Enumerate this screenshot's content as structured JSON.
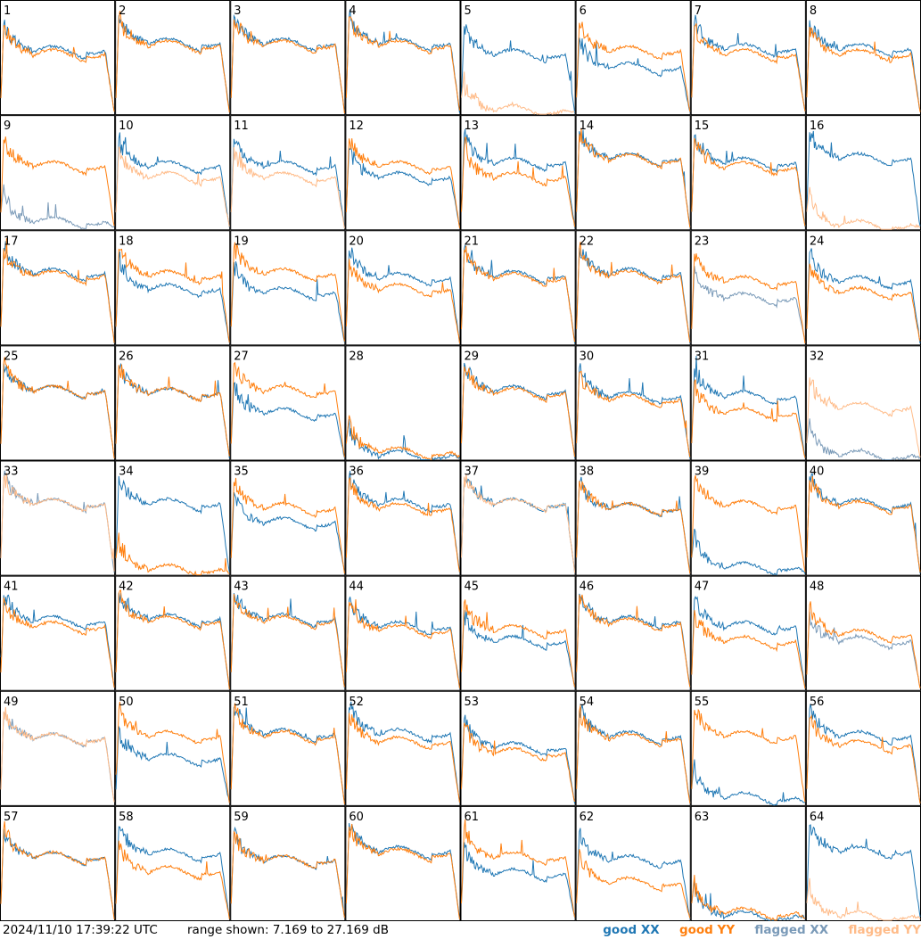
{
  "footer": {
    "timestamp": "2024/11/10 17:39:22 UTC",
    "range_text": "range shown: 7.169 to 27.169 dB"
  },
  "legend": [
    {
      "label": "good XX",
      "color": "#1f77b4"
    },
    {
      "label": "good YY",
      "color": "#ff7f0e"
    },
    {
      "label": "flagged XX",
      "color": "#7a9ab8"
    },
    {
      "label": "flagged YY",
      "color": "#ffbb88"
    }
  ],
  "chart_data": {
    "type": "line",
    "title": "",
    "xlabel": "",
    "ylabel": "",
    "ylim": [
      7.169,
      27.169
    ],
    "grid": false,
    "legend_placement": "bottom-right",
    "series_names": [
      "good XX",
      "good YY",
      "flagged XX",
      "flagged YY"
    ],
    "panels": [
      {
        "label": "1",
        "xx": "good",
        "yy": "good",
        "xx_level": 0.55,
        "yy_level": 0.52
      },
      {
        "label": "2",
        "xx": "good",
        "yy": "good",
        "xx_level": 0.62,
        "yy_level": 0.6
      },
      {
        "label": "3",
        "xx": "good",
        "yy": "good",
        "xx_level": 0.62,
        "yy_level": 0.6
      },
      {
        "label": "4",
        "xx": "good",
        "yy": "good",
        "xx_level": 0.62,
        "yy_level": 0.6
      },
      {
        "label": "5",
        "xx": "good",
        "yy": "flagged",
        "xx_level": 0.52,
        "yy_level": 0.02
      },
      {
        "label": "6",
        "xx": "good",
        "yy": "good",
        "xx_level": 0.4,
        "yy_level": 0.55
      },
      {
        "label": "7",
        "xx": "good",
        "yy": "good",
        "xx_level": 0.57,
        "yy_level": 0.52
      },
      {
        "label": "8",
        "xx": "good",
        "yy": "good",
        "xx_level": 0.57,
        "yy_level": 0.52
      },
      {
        "label": "9",
        "xx": "flagged",
        "yy": "good",
        "xx_level": 0.05,
        "yy_level": 0.55
      },
      {
        "label": "10",
        "xx": "good",
        "yy": "flagged",
        "xx_level": 0.55,
        "yy_level": 0.45
      },
      {
        "label": "11",
        "xx": "good",
        "yy": "flagged",
        "xx_level": 0.55,
        "yy_level": 0.45
      },
      {
        "label": "12",
        "xx": "good",
        "yy": "good",
        "xx_level": 0.45,
        "yy_level": 0.55
      },
      {
        "label": "13",
        "xx": "good",
        "yy": "good",
        "xx_level": 0.58,
        "yy_level": 0.45
      },
      {
        "label": "14",
        "xx": "good",
        "yy": "good",
        "xx_level": 0.62,
        "yy_level": 0.61
      },
      {
        "label": "15",
        "xx": "good",
        "yy": "good",
        "xx_level": 0.58,
        "yy_level": 0.54
      },
      {
        "label": "16",
        "xx": "good",
        "yy": "flagged",
        "xx_level": 0.62,
        "yy_level": 0.02
      },
      {
        "label": "17",
        "xx": "good",
        "yy": "good",
        "xx_level": 0.62,
        "yy_level": 0.6
      },
      {
        "label": "18",
        "xx": "good",
        "yy": "good",
        "xx_level": 0.48,
        "yy_level": 0.6
      },
      {
        "label": "19",
        "xx": "good",
        "yy": "good",
        "xx_level": 0.45,
        "yy_level": 0.62
      },
      {
        "label": "20",
        "xx": "good",
        "yy": "good",
        "xx_level": 0.58,
        "yy_level": 0.48
      },
      {
        "label": "21",
        "xx": "good",
        "yy": "good",
        "xx_level": 0.6,
        "yy_level": 0.58
      },
      {
        "label": "22",
        "xx": "good",
        "yy": "good",
        "xx_level": 0.62,
        "yy_level": 0.6
      },
      {
        "label": "23",
        "xx": "flagged",
        "yy": "good",
        "xx_level": 0.4,
        "yy_level": 0.55
      },
      {
        "label": "24",
        "xx": "good",
        "yy": "good",
        "xx_level": 0.55,
        "yy_level": 0.45
      },
      {
        "label": "25",
        "xx": "good",
        "yy": "good",
        "xx_level": 0.6,
        "yy_level": 0.6
      },
      {
        "label": "26",
        "xx": "good",
        "yy": "good",
        "xx_level": 0.58,
        "yy_level": 0.58
      },
      {
        "label": "27",
        "xx": "good",
        "yy": "good",
        "xx_level": 0.4,
        "yy_level": 0.6
      },
      {
        "label": "28",
        "xx": "good",
        "yy": "good",
        "xx_level": 0.02,
        "yy_level": 0.05
      },
      {
        "label": "29",
        "xx": "good",
        "yy": "good",
        "xx_level": 0.6,
        "yy_level": 0.58
      },
      {
        "label": "30",
        "xx": "good",
        "yy": "good",
        "xx_level": 0.55,
        "yy_level": 0.52
      },
      {
        "label": "31",
        "xx": "good",
        "yy": "good",
        "xx_level": 0.55,
        "yy_level": 0.4
      },
      {
        "label": "32",
        "xx": "flagged",
        "yy": "flagged",
        "xx_level": 0.02,
        "yy_level": 0.45
      },
      {
        "label": "33",
        "xx": "flagged",
        "yy": "flagged",
        "xx_level": 0.62,
        "yy_level": 0.62
      },
      {
        "label": "34",
        "xx": "good",
        "yy": "good",
        "xx_level": 0.62,
        "yy_level": 0.03
      },
      {
        "label": "35",
        "xx": "good",
        "yy": "good",
        "xx_level": 0.45,
        "yy_level": 0.58
      },
      {
        "label": "36",
        "xx": "good",
        "yy": "good",
        "xx_level": 0.62,
        "yy_level": 0.58
      },
      {
        "label": "37",
        "xx": "good",
        "yy": "flagged",
        "xx_level": 0.62,
        "yy_level": 0.62
      },
      {
        "label": "38",
        "xx": "good",
        "yy": "good",
        "xx_level": 0.58,
        "yy_level": 0.58
      },
      {
        "label": "39",
        "xx": "good",
        "yy": "good",
        "xx_level": 0.05,
        "yy_level": 0.6
      },
      {
        "label": "40",
        "xx": "good",
        "yy": "good",
        "xx_level": 0.62,
        "yy_level": 0.6
      },
      {
        "label": "41",
        "xx": "good",
        "yy": "good",
        "xx_level": 0.6,
        "yy_level": 0.55
      },
      {
        "label": "42",
        "xx": "good",
        "yy": "good",
        "xx_level": 0.62,
        "yy_level": 0.6
      },
      {
        "label": "43",
        "xx": "good",
        "yy": "good",
        "xx_level": 0.62,
        "yy_level": 0.6
      },
      {
        "label": "44",
        "xx": "good",
        "yy": "good",
        "xx_level": 0.55,
        "yy_level": 0.52
      },
      {
        "label": "45",
        "xx": "good",
        "yy": "good",
        "xx_level": 0.42,
        "yy_level": 0.52
      },
      {
        "label": "46",
        "xx": "good",
        "yy": "good",
        "xx_level": 0.6,
        "yy_level": 0.58
      },
      {
        "label": "47",
        "xx": "good",
        "yy": "good",
        "xx_level": 0.55,
        "yy_level": 0.42
      },
      {
        "label": "48",
        "xx": "flagged",
        "yy": "good",
        "xx_level": 0.42,
        "yy_level": 0.48
      },
      {
        "label": "49",
        "xx": "flagged",
        "yy": "flagged",
        "xx_level": 0.58,
        "yy_level": 0.58
      },
      {
        "label": "50",
        "xx": "good",
        "yy": "good",
        "xx_level": 0.4,
        "yy_level": 0.6
      },
      {
        "label": "51",
        "xx": "good",
        "yy": "good",
        "xx_level": 0.62,
        "yy_level": 0.6
      },
      {
        "label": "52",
        "xx": "good",
        "yy": "good",
        "xx_level": 0.62,
        "yy_level": 0.55
      },
      {
        "label": "53",
        "xx": "good",
        "yy": "good",
        "xx_level": 0.5,
        "yy_level": 0.45
      },
      {
        "label": "54",
        "xx": "good",
        "yy": "good",
        "xx_level": 0.6,
        "yy_level": 0.58
      },
      {
        "label": "55",
        "xx": "good",
        "yy": "good",
        "xx_level": 0.05,
        "yy_level": 0.6
      },
      {
        "label": "56",
        "xx": "good",
        "yy": "good",
        "xx_level": 0.6,
        "yy_level": 0.52
      },
      {
        "label": "57",
        "xx": "good",
        "yy": "good",
        "xx_level": 0.55,
        "yy_level": 0.55
      },
      {
        "label": "58",
        "xx": "good",
        "yy": "good",
        "xx_level": 0.58,
        "yy_level": 0.42
      },
      {
        "label": "59",
        "xx": "good",
        "yy": "good",
        "xx_level": 0.52,
        "yy_level": 0.52
      },
      {
        "label": "60",
        "xx": "good",
        "yy": "good",
        "xx_level": 0.6,
        "yy_level": 0.58
      },
      {
        "label": "61",
        "xx": "good",
        "yy": "good",
        "xx_level": 0.4,
        "yy_level": 0.55
      },
      {
        "label": "62",
        "xx": "good",
        "yy": "good",
        "xx_level": 0.52,
        "yy_level": 0.32
      },
      {
        "label": "63",
        "xx": "good",
        "yy": "good",
        "xx_level": 0.02,
        "yy_level": 0.05
      },
      {
        "label": "64",
        "xx": "good",
        "yy": "flagged",
        "xx_level": 0.6,
        "yy_level": 0.02
      }
    ]
  }
}
